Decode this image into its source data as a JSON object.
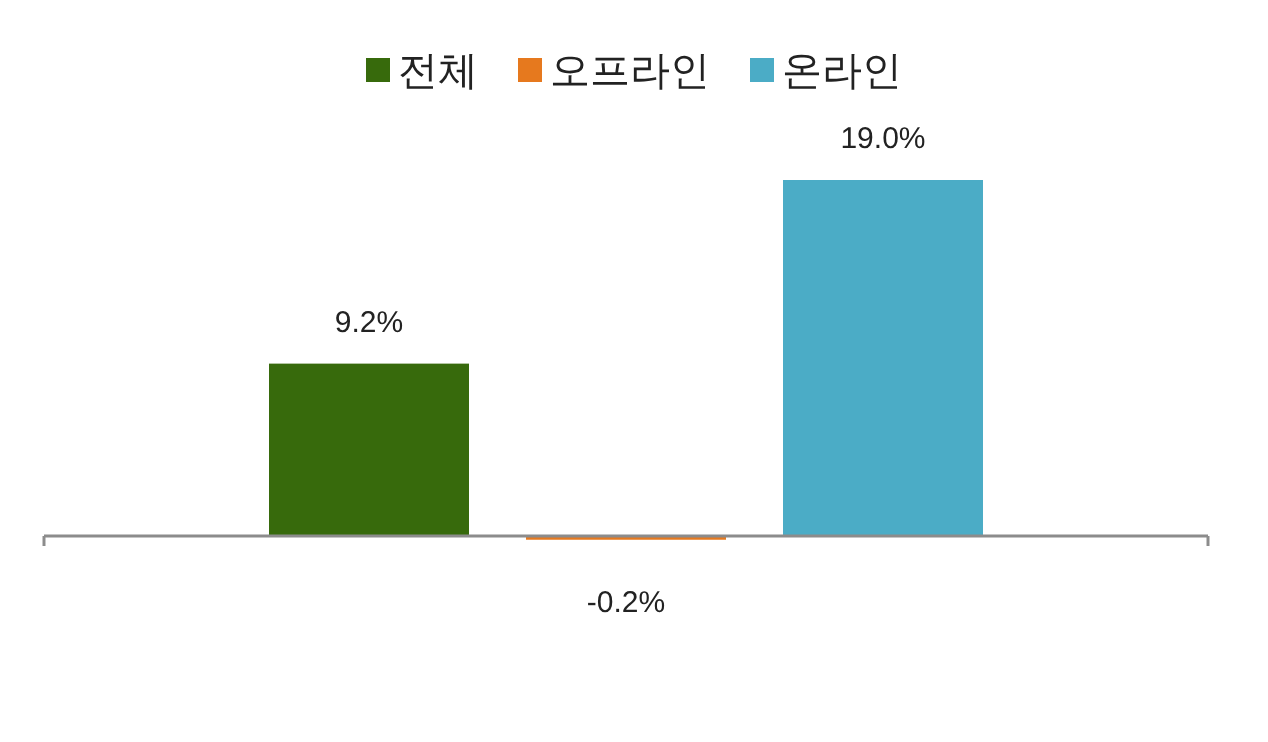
{
  "chart_data": {
    "type": "bar",
    "categories": [
      null
    ],
    "legend": "top",
    "series": [
      {
        "name": "전체",
        "color": "#376a0c",
        "values": [
          9.2
        ],
        "value_labels": [
          "9.2%"
        ]
      },
      {
        "name": "오프라인",
        "color": "#e6791e",
        "values": [
          -0.2
        ],
        "value_labels": [
          "-0.2%"
        ]
      },
      {
        "name": "온라인",
        "color": "#4bacc6",
        "values": [
          19.0
        ],
        "value_labels": [
          "19.0%"
        ]
      }
    ]
  }
}
